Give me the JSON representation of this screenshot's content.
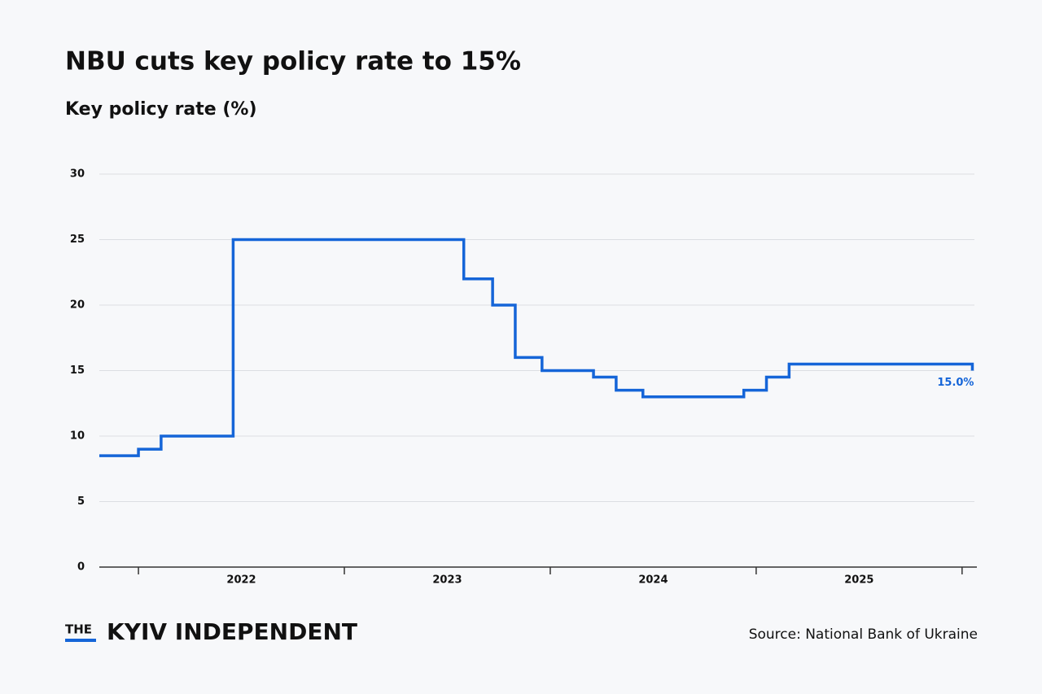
{
  "chart_data": {
    "type": "step",
    "title": "NBU cuts key policy rate to 15%",
    "subtitle": "Key policy rate (%)",
    "x": [
      2021.81,
      2022.0,
      2022.11,
      2022.46,
      2023.58,
      2023.72,
      2023.83,
      2023.96,
      2024.21,
      2024.32,
      2024.45,
      2024.94,
      2025.05,
      2025.16,
      2026.05
    ],
    "values": [
      8.5,
      9,
      10,
      25,
      22,
      20,
      16,
      15,
      14.5,
      13.5,
      13,
      13.5,
      14.5,
      15.5,
      15
    ],
    "value_labels": [
      null,
      null,
      null,
      null,
      null,
      null,
      null,
      null,
      null,
      null,
      null,
      null,
      null,
      null,
      "15.0%"
    ],
    "color": "#1565d8",
    "xlim": [
      2021.81,
      2026.06
    ],
    "xticks": [
      {
        "value": 2022.5,
        "label": "2022"
      },
      {
        "value": 2023.5,
        "label": "2023"
      },
      {
        "value": 2024.5,
        "label": "2024"
      },
      {
        "value": 2025.5,
        "label": "2025"
      }
    ],
    "x_tick_marks": [
      2022,
      2023,
      2024,
      2025,
      2026
    ],
    "ylim": [
      0,
      30
    ],
    "yticks": [
      0,
      5,
      10,
      15,
      20,
      25,
      30
    ],
    "grid": true
  },
  "footer": {
    "brand_small": "THE",
    "brand": "KYIV INDEPENDENT",
    "source": "Source: National Bank of Ukraine"
  }
}
